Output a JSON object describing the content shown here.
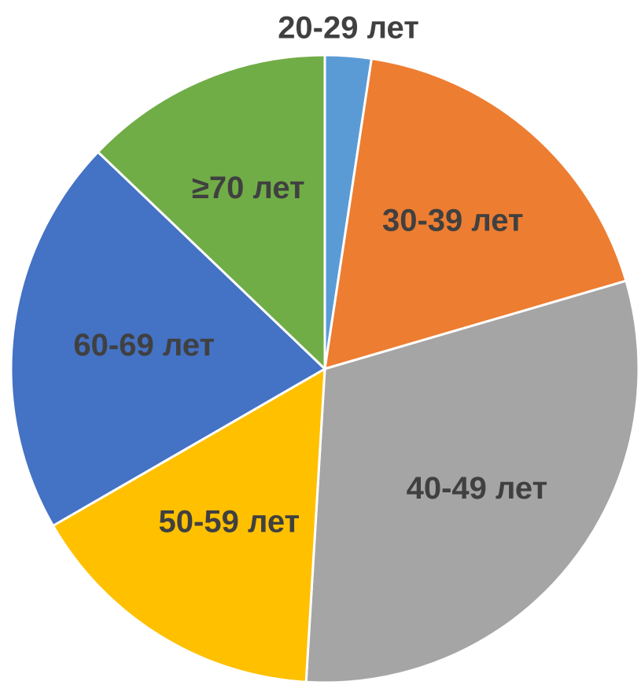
{
  "chart_data": {
    "type": "pie",
    "title": "",
    "slices": [
      {
        "label": "20-29 лет",
        "value": 2.5,
        "color": "#5B9BD5"
      },
      {
        "label": "30-39 лет",
        "value": 19.0,
        "color": "#ED7D31"
      },
      {
        "label": "40-49 лет",
        "value": 32.0,
        "color": "#A5A5A5"
      },
      {
        "label": "50-59 лет",
        "value": 16.5,
        "color": "#FFC000"
      },
      {
        "label": "60-69 лет",
        "value": 21.5,
        "color": "#4472C4"
      },
      {
        "label": "≥70 лет",
        "value": 13.5,
        "color": "#70AD47"
      }
    ],
    "start_angle": "12 o'clock",
    "direction": "clockwise",
    "data_labels": "category names inside slices; smallest slice labelled outside, above",
    "legend": "none"
  }
}
